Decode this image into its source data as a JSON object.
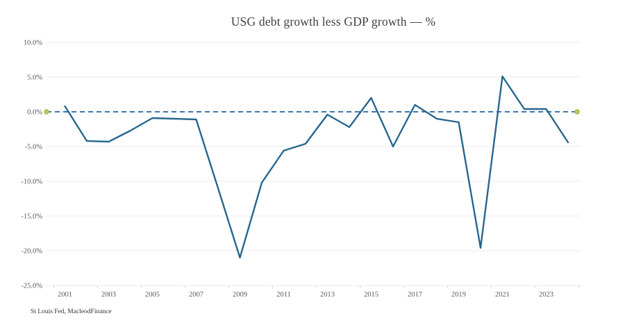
{
  "title": "USG debt growth less GDP growth — %",
  "source": "St Louis Fed, MacleodFinance",
  "colors": {
    "line": "#26678e",
    "zero_line": "#3d76ae",
    "marker_fill": "#b6d153",
    "marker_stroke": "#8fb83a",
    "grid": "#e9e9e9",
    "tick": "#d9d9d9",
    "axis_text": "#595959"
  },
  "chart_data": {
    "type": "line",
    "title": "USG debt growth less GDP growth — %",
    "xlabel": "",
    "ylabel": "",
    "ylim": [
      -25,
      10
    ],
    "grid": "horizontal",
    "legend": "none",
    "x": [
      2001,
      2002,
      2003,
      2004,
      2005,
      2006,
      2007,
      2008,
      2009,
      2010,
      2011,
      2012,
      2013,
      2014,
      2015,
      2016,
      2017,
      2018,
      2019,
      2020,
      2021,
      2022,
      2023,
      2024
    ],
    "series": [
      {
        "name": "USG debt growth less GDP growth (%)",
        "color": "#26678e",
        "values": [
          0.8,
          -4.2,
          -4.3,
          -2.7,
          -0.9,
          -1.0,
          -1.1,
          -11.0,
          -21.0,
          -10.2,
          -5.6,
          -4.6,
          -0.4,
          -2.2,
          2.0,
          -5.0,
          1.0,
          -1.0,
          -1.5,
          -19.6,
          5.1,
          0.4,
          0.4,
          -4.4
        ]
      }
    ],
    "zero_line": {
      "value": 0,
      "style": "dashed",
      "color": "#3d76ae",
      "marker_fill": "#b6d153",
      "marker_stroke": "#8fb83a"
    },
    "ytick_values": [
      10,
      5,
      0,
      -5,
      -10,
      -15,
      -20,
      -25
    ],
    "ytick_labels": [
      "10.0%",
      "5.0%",
      "0.0%",
      "-5.0%",
      "-10.0%",
      "-15.0%",
      "-20.0%",
      "-25.0%"
    ],
    "xtick_labels": [
      "2001",
      "2003",
      "2005",
      "2007",
      "2009",
      "2011",
      "2013",
      "2015",
      "2017",
      "2019",
      "2021",
      "2023"
    ]
  }
}
